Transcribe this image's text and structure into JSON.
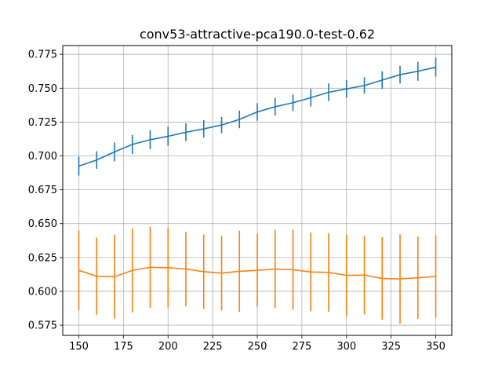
{
  "chart_data": {
    "type": "line",
    "title": "conv53-attractive-pca190.0-test-0.62",
    "xlabel": "",
    "ylabel": "",
    "xlim": [
      141,
      359
    ],
    "ylim": [
      0.5675,
      0.7815
    ],
    "xticks": [
      150,
      175,
      200,
      225,
      250,
      275,
      300,
      325,
      350
    ],
    "yticks": [
      0.575,
      0.6,
      0.625,
      0.65,
      0.675,
      0.7,
      0.725,
      0.75,
      0.775
    ],
    "grid": true,
    "legend": "none",
    "x": [
      150,
      160,
      170,
      180,
      190,
      200,
      210,
      220,
      230,
      240,
      250,
      260,
      270,
      280,
      290,
      300,
      310,
      320,
      330,
      340,
      350
    ],
    "series": [
      {
        "color": "#1f77b4",
        "values": [
          0.6925,
          0.697,
          0.703,
          0.7085,
          0.712,
          0.7145,
          0.7175,
          0.72,
          0.7228,
          0.727,
          0.7325,
          0.7363,
          0.7393,
          0.743,
          0.747,
          0.7495,
          0.752,
          0.756,
          0.76,
          0.7625,
          0.7655
        ],
        "errors": [
          0.007,
          0.0065,
          0.007,
          0.007,
          0.007,
          0.007,
          0.0065,
          0.0065,
          0.006,
          0.0065,
          0.0065,
          0.0065,
          0.006,
          0.0065,
          0.0065,
          0.0065,
          0.006,
          0.0065,
          0.0065,
          0.007,
          0.007
        ]
      },
      {
        "color": "#ff7f0e",
        "values": [
          0.6155,
          0.6112,
          0.6108,
          0.6155,
          0.6178,
          0.6175,
          0.6165,
          0.6145,
          0.6135,
          0.6148,
          0.6155,
          0.6165,
          0.616,
          0.6143,
          0.614,
          0.6118,
          0.612,
          0.6095,
          0.6092,
          0.61,
          0.611
        ],
        "errors": [
          0.0295,
          0.0285,
          0.031,
          0.031,
          0.03,
          0.0295,
          0.0275,
          0.0275,
          0.0275,
          0.03,
          0.027,
          0.029,
          0.0295,
          0.029,
          0.029,
          0.03,
          0.029,
          0.0305,
          0.033,
          0.0305,
          0.0305
        ]
      }
    ]
  }
}
